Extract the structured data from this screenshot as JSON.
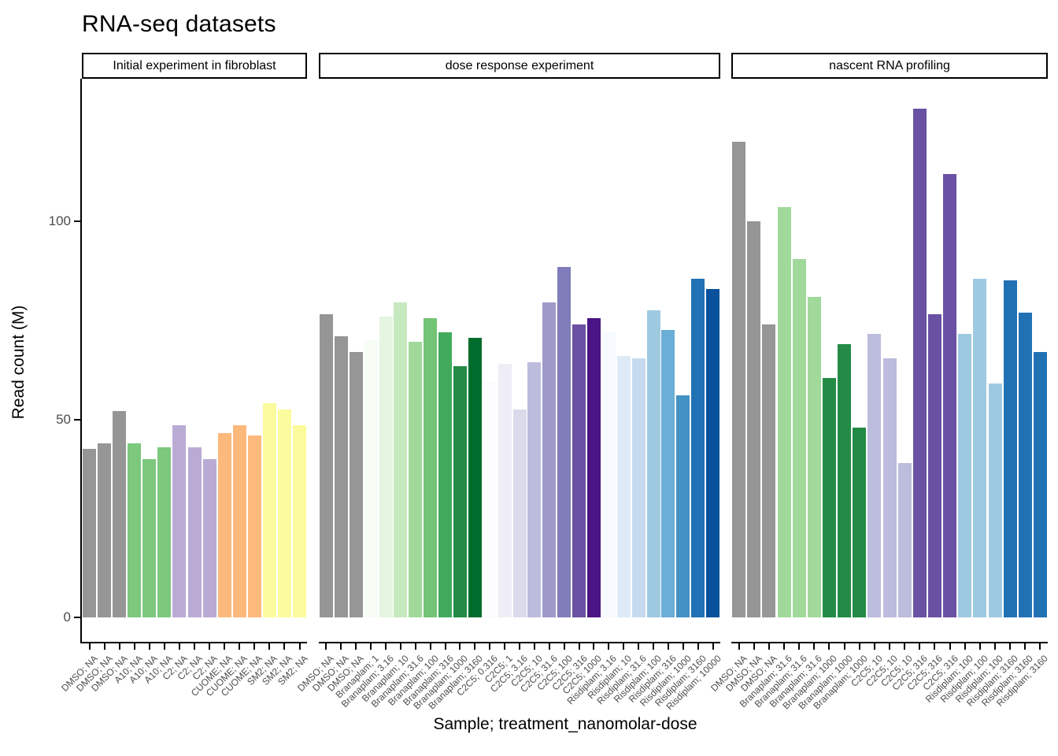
{
  "title": "RNA-seq datasets",
  "axes": {
    "x_title": "Sample; treatment_nanomolar-dose",
    "y_title": "Read count (M)",
    "y_ticks": [
      0,
      50,
      100
    ]
  },
  "colors": {
    "dmso_gray": "#969696",
    "fibroblast_a10_green": "#7CC87D",
    "fibroblast_c2_purple": "#BAABD4",
    "fibroblast_cuome_orange": "#FCB97B",
    "fibroblast_sm2_yellow": "#FBFB9D",
    "branaplam_greens": [
      "#F7FCF5",
      "#E5F5E0",
      "#C7E9C0",
      "#A1D99B",
      "#74C476",
      "#41AB5D",
      "#238B45",
      "#006D2C"
    ],
    "c2c5_purples": [
      "#FCFBFD",
      "#EFEDF5",
      "#DADAEB",
      "#BCBDDC",
      "#9E9AC8",
      "#807DBA",
      "#6A51A3",
      "#4A1486"
    ],
    "risdiplam_blues": [
      "#F7FBFF",
      "#DEEBF7",
      "#C6DBEF",
      "#9ECAE1",
      "#6BAED6",
      "#4292C6",
      "#2171B5",
      "#08519C"
    ]
  },
  "chart_data": {
    "type": "bar",
    "title": "RNA-seq datasets",
    "xlabel": "Sample; treatment_nanomolar-dose",
    "ylabel": "Read count (M)",
    "ylim": [
      0,
      135
    ],
    "yticks": [
      0,
      50,
      100
    ],
    "grid": false,
    "legend": "none",
    "facets": [
      {
        "name": "Initial experiment in fibroblast",
        "bars": [
          {
            "label": "DMSO; NA",
            "value": 42.5,
            "color": "#969696"
          },
          {
            "label": "DMSO; NA",
            "value": 44,
            "color": "#969696"
          },
          {
            "label": "DMSO; NA",
            "value": 52,
            "color": "#969696"
          },
          {
            "label": "A10; NA",
            "value": 44,
            "color": "#7CC87D"
          },
          {
            "label": "A10; NA",
            "value": 40,
            "color": "#7CC87D"
          },
          {
            "label": "A10; NA",
            "value": 43,
            "color": "#7CC87D"
          },
          {
            "label": "C2; NA",
            "value": 48.5,
            "color": "#BAABD4"
          },
          {
            "label": "C2; NA",
            "value": 43,
            "color": "#BAABD4"
          },
          {
            "label": "C2; NA",
            "value": 40,
            "color": "#BAABD4"
          },
          {
            "label": "CUOME; NA",
            "value": 46.5,
            "color": "#FCB97B"
          },
          {
            "label": "CUOME; NA",
            "value": 48.5,
            "color": "#FCB97B"
          },
          {
            "label": "CUOME; NA",
            "value": 46,
            "color": "#FCB97B"
          },
          {
            "label": "SM2; NA",
            "value": 54,
            "color": "#FBFB9D"
          },
          {
            "label": "SM2; NA",
            "value": 52.5,
            "color": "#FBFB9D"
          },
          {
            "label": "SM2; NA",
            "value": 48.5,
            "color": "#FBFB9D"
          }
        ]
      },
      {
        "name": "dose response experiment",
        "bars": [
          {
            "label": "DMSO; NA",
            "value": 76.5,
            "color": "#969696"
          },
          {
            "label": "DMSO; NA",
            "value": 71,
            "color": "#969696"
          },
          {
            "label": "DMSO; NA",
            "value": 67,
            "color": "#969696"
          },
          {
            "label": "Branaplam; 1",
            "value": 70,
            "color": "#F7FCF5"
          },
          {
            "label": "Branaplam; 3.16",
            "value": 76,
            "color": "#E5F5E0"
          },
          {
            "label": "Branaplam; 10",
            "value": 79.5,
            "color": "#C7E9C0"
          },
          {
            "label": "Branaplam; 31.6",
            "value": 69.5,
            "color": "#A1D99B"
          },
          {
            "label": "Branaplam; 100",
            "value": 75.5,
            "color": "#74C476"
          },
          {
            "label": "Branaplam; 316",
            "value": 72,
            "color": "#41AB5D"
          },
          {
            "label": "Branaplam; 1000",
            "value": 63.5,
            "color": "#238B45"
          },
          {
            "label": "Branaplam; 3160",
            "value": 70.5,
            "color": "#006D2C"
          },
          {
            "label": "C2C5; 0.316",
            "value": 59.5,
            "color": "#FCFBFD"
          },
          {
            "label": "C2C5; 1",
            "value": 64,
            "color": "#EFEDF5"
          },
          {
            "label": "C2C5; 3.16",
            "value": 52.5,
            "color": "#DADAEB"
          },
          {
            "label": "C2C5; 10",
            "value": 64.5,
            "color": "#BCBDDC"
          },
          {
            "label": "C2C5; 31.6",
            "value": 79.5,
            "color": "#9E9AC8"
          },
          {
            "label": "C2C5; 100",
            "value": 88.5,
            "color": "#807DBA"
          },
          {
            "label": "C2C5; 316",
            "value": 74,
            "color": "#6A51A3"
          },
          {
            "label": "C2C5; 1000",
            "value": 75.5,
            "color": "#4A1486"
          },
          {
            "label": "Risdiplam; 3.16",
            "value": 72,
            "color": "#F7FBFF"
          },
          {
            "label": "Risdiplam; 10",
            "value": 66,
            "color": "#DEEBF7"
          },
          {
            "label": "Risdiplam; 31.6",
            "value": 65.5,
            "color": "#C6DBEF"
          },
          {
            "label": "Risdiplam; 100",
            "value": 77.5,
            "color": "#9ECAE1"
          },
          {
            "label": "Risdiplam; 316",
            "value": 72.5,
            "color": "#6BAED6"
          },
          {
            "label": "Risdiplam; 1000",
            "value": 56,
            "color": "#4292C6"
          },
          {
            "label": "Risdiplam; 3160",
            "value": 85.5,
            "color": "#2171B5"
          },
          {
            "label": "Risdiplam; 10000",
            "value": 83,
            "color": "#08519C"
          }
        ]
      },
      {
        "name": "nascent RNA profiling",
        "bars": [
          {
            "label": "DMSO; NA",
            "value": 120,
            "color": "#969696"
          },
          {
            "label": "DMSO; NA",
            "value": 100,
            "color": "#969696"
          },
          {
            "label": "DMSO; NA",
            "value": 74,
            "color": "#969696"
          },
          {
            "label": "Branaplam; 31.6",
            "value": 103.5,
            "color": "#A1D99B"
          },
          {
            "label": "Branaplam; 31.6",
            "value": 90.5,
            "color": "#A1D99B"
          },
          {
            "label": "Branaplam; 31.6",
            "value": 81,
            "color": "#A1D99B"
          },
          {
            "label": "Branaplam; 1000",
            "value": 60.5,
            "color": "#238B45"
          },
          {
            "label": "Branaplam; 1000",
            "value": 69,
            "color": "#238B45"
          },
          {
            "label": "Branaplam; 1000",
            "value": 48,
            "color": "#238B45"
          },
          {
            "label": "C2C5; 10",
            "value": 71.5,
            "color": "#BCBDDC"
          },
          {
            "label": "C2C5; 10",
            "value": 65.5,
            "color": "#BCBDDC"
          },
          {
            "label": "C2C5; 10",
            "value": 39,
            "color": "#BCBDDC"
          },
          {
            "label": "C2C5; 316",
            "value": 128.5,
            "color": "#6A51A3"
          },
          {
            "label": "C2C5; 316",
            "value": 76.5,
            "color": "#6A51A3"
          },
          {
            "label": "C2C5; 316",
            "value": 112,
            "color": "#6A51A3"
          },
          {
            "label": "Risdiplam; 100",
            "value": 71.5,
            "color": "#9ECAE1"
          },
          {
            "label": "Risdiplam; 100",
            "value": 85.5,
            "color": "#9ECAE1"
          },
          {
            "label": "Risdiplam; 100",
            "value": 59,
            "color": "#9ECAE1"
          },
          {
            "label": "Risdiplam; 3160",
            "value": 85,
            "color": "#2171B5"
          },
          {
            "label": "Risdiplam; 3160",
            "value": 77,
            "color": "#2171B5"
          },
          {
            "label": "Risdiplam; 3160",
            "value": 67,
            "color": "#2171B5"
          }
        ]
      }
    ]
  }
}
